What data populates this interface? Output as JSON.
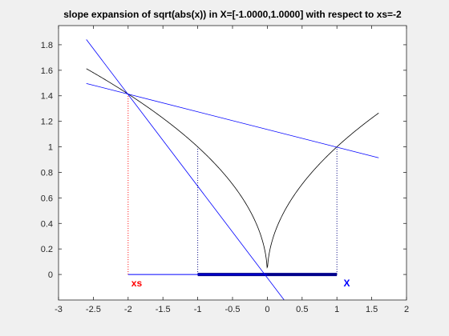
{
  "chart_data": {
    "type": "line",
    "title": "slope expansion of sqrt(abs(x)) in X=[-1.0000,1.0000] with respect to xs=-2",
    "xlabel": "",
    "ylabel": "",
    "xlim": [
      -3,
      2
    ],
    "ylim": [
      -0.2,
      1.95
    ],
    "x_ticks": [
      -3,
      -2.5,
      -2,
      -1.5,
      -1,
      -0.5,
      0,
      0.5,
      1,
      1.5,
      2
    ],
    "x_tick_labels": [
      "-3",
      "-2.5",
      "-2",
      "-1.5",
      "-1",
      "-0.5",
      "0",
      "0.5",
      "1",
      "1.5",
      "2"
    ],
    "y_ticks": [
      0,
      0.2,
      0.4,
      0.6,
      0.8,
      1,
      1.2,
      1.4,
      1.6,
      1.8
    ],
    "y_tick_labels": [
      "0",
      "0.2",
      "0.4",
      "0.6",
      "0.8",
      "1",
      "1.2",
      "1.4",
      "1.6",
      "1.8"
    ],
    "grid": false,
    "function": {
      "expression": "sqrt(abs(x))",
      "x_domain": [
        -2.6,
        1.6
      ],
      "color": "#000000"
    },
    "slope_lines": [
      {
        "x": [
          -2.6,
          1.6
        ],
        "y": [
          1.4966,
          0.9142
        ],
        "color": "#0000ff"
      },
      {
        "x": [
          -2.6,
          0.25
        ],
        "y": [
          1.8409,
          -0.2059
        ],
        "color": "#0000ff"
      }
    ],
    "dotted_lines": [
      {
        "x": [
          -2,
          -2
        ],
        "y": [
          0,
          1.4142
        ],
        "color": "#ff0000"
      },
      {
        "x": [
          -1,
          -1
        ],
        "y": [
          0,
          1
        ],
        "color": "#00007f"
      },
      {
        "x": [
          1,
          1
        ],
        "y": [
          0,
          1
        ],
        "color": "#00007f"
      }
    ],
    "intervals": [
      {
        "x": [
          -1,
          1
        ],
        "y": [
          0,
          0
        ],
        "color": "#00008b",
        "thick": true
      },
      {
        "x": [
          -2,
          0
        ],
        "y": [
          0,
          0
        ],
        "color": "#0000ff",
        "thick": false
      }
    ],
    "annotations": [
      {
        "text": "xs",
        "x": -2,
        "y": -0.08,
        "color": "#ff0000"
      },
      {
        "text": "X",
        "x": 1.05,
        "y": -0.08,
        "color": "#0000ff"
      }
    ]
  }
}
